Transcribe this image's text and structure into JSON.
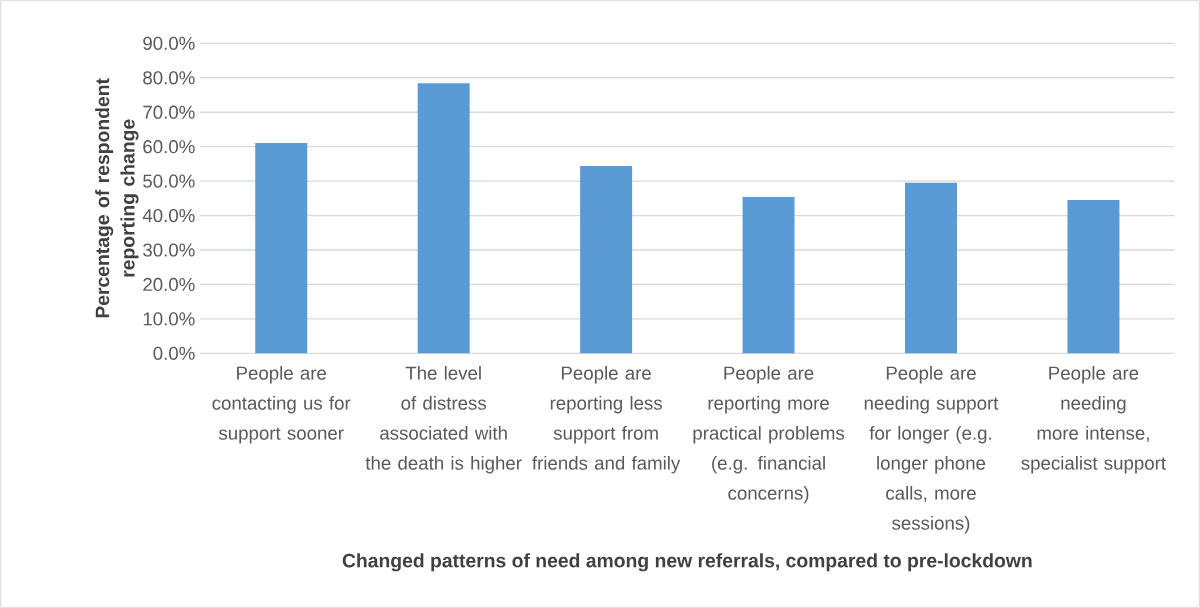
{
  "chart_data": {
    "type": "bar",
    "xlabel": "Changed patterns of need among new referrals, compared to pre-lockdown",
    "ylabel": "Percentage of respondent reporting change",
    "categories": [
      "People are contacting us for support sooner",
      "The level of distress associated with the death is higher",
      "People are reporting less support from friends and family",
      "People are reporting more practical problems (e.g. financial concerns)",
      "People are needing support for longer (e.g. longer phone calls, more sessions)",
      "People are needing more intense, specialist support"
    ],
    "values": [
      61.1,
      78.4,
      54.4,
      45.4,
      49.5,
      44.5
    ],
    "color": "#5b9bd5",
    "ylim": [
      0,
      90
    ],
    "yticks": [
      {
        "value": 0,
        "label": "0.0%"
      },
      {
        "value": 10,
        "label": "10.0%"
      },
      {
        "value": 20,
        "label": "20.0%"
      },
      {
        "value": 30,
        "label": "30.0%"
      },
      {
        "value": 40,
        "label": "40.0%"
      },
      {
        "value": 50,
        "label": "50.0%"
      },
      {
        "value": 60,
        "label": "60.0%"
      },
      {
        "value": 70,
        "label": "70.0%"
      },
      {
        "value": 80,
        "label": "80.0%"
      },
      {
        "value": 90,
        "label": "90.0%"
      }
    ],
    "grid": "y"
  }
}
